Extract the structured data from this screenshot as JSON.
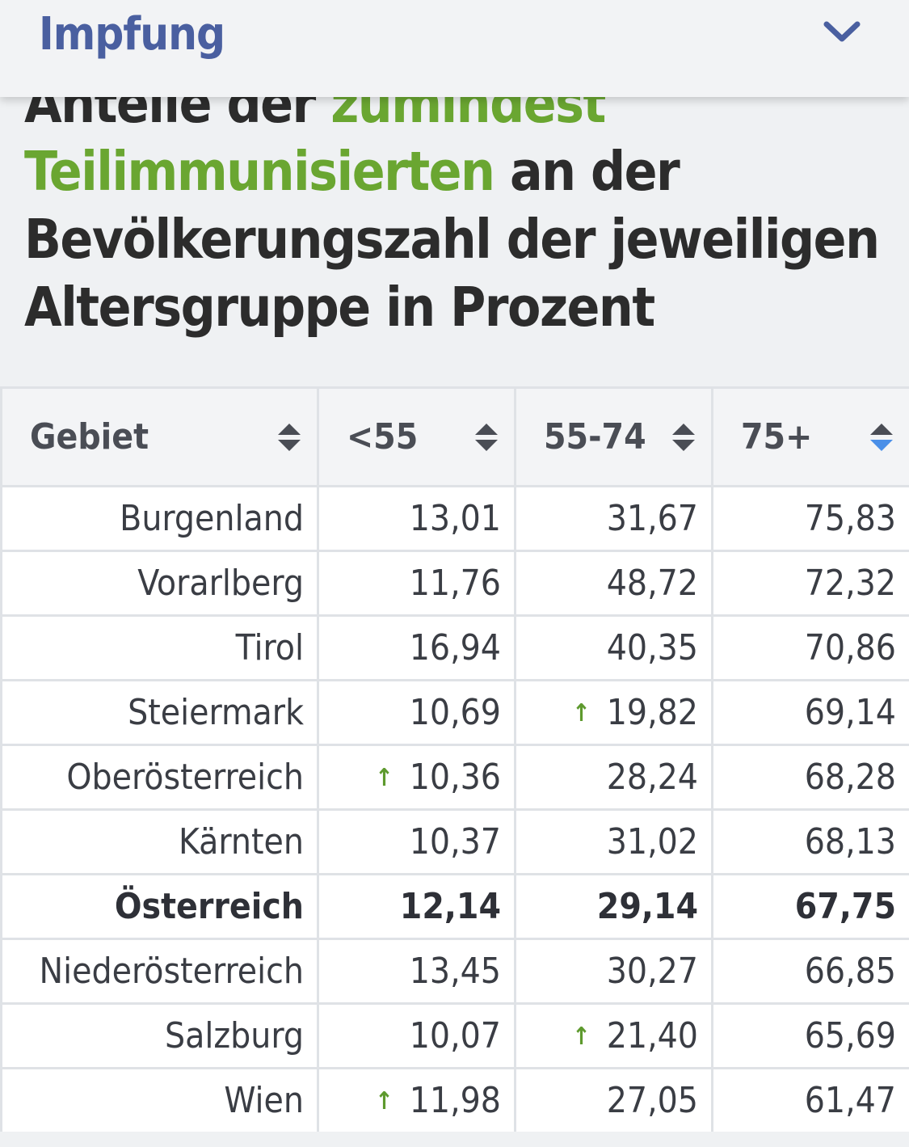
{
  "header": {
    "title": "Impfung",
    "chevron_icon": "chevron-down-icon"
  },
  "headline": {
    "line1_dark": "Anteile der",
    "line1_green": "zumindest",
    "line2_green": "Teilimmunisierten",
    "line2_dark": "an der",
    "line3": "Bevölkerungszahl der jeweiligen",
    "line4": "Altersgruppe in Prozent"
  },
  "colors": {
    "accent_green": "#6aa631",
    "title_blue": "#4a5fa0",
    "sort_active": "#4a8fe8"
  },
  "table": {
    "columns": [
      "Gebiet",
      "<55",
      "55-74",
      "75+"
    ],
    "active_sort_column": "75+",
    "rows": [
      {
        "gebiet": "Burgenland",
        "u55": "13,01",
        "u55_up": false,
        "m5574": "31,67",
        "m5574_up": false,
        "o75": "75,83",
        "bold": false
      },
      {
        "gebiet": "Vorarlberg",
        "u55": "11,76",
        "u55_up": false,
        "m5574": "48,72",
        "m5574_up": false,
        "o75": "72,32",
        "bold": false
      },
      {
        "gebiet": "Tirol",
        "u55": "16,94",
        "u55_up": false,
        "m5574": "40,35",
        "m5574_up": false,
        "o75": "70,86",
        "bold": false
      },
      {
        "gebiet": "Steiermark",
        "u55": "10,69",
        "u55_up": false,
        "m5574": "19,82",
        "m5574_up": true,
        "o75": "69,14",
        "bold": false
      },
      {
        "gebiet": "Oberösterreich",
        "u55": "10,36",
        "u55_up": true,
        "m5574": "28,24",
        "m5574_up": false,
        "o75": "68,28",
        "bold": false
      },
      {
        "gebiet": "Kärnten",
        "u55": "10,37",
        "u55_up": false,
        "m5574": "31,02",
        "m5574_up": false,
        "o75": "68,13",
        "bold": false
      },
      {
        "gebiet": "Österreich",
        "u55": "12,14",
        "u55_up": false,
        "m5574": "29,14",
        "m5574_up": false,
        "o75": "67,75",
        "bold": true
      },
      {
        "gebiet": "Niederösterreich",
        "u55": "13,45",
        "u55_up": false,
        "m5574": "30,27",
        "m5574_up": false,
        "o75": "66,85",
        "bold": false
      },
      {
        "gebiet": "Salzburg",
        "u55": "10,07",
        "u55_up": false,
        "m5574": "21,40",
        "m5574_up": true,
        "o75": "65,69",
        "bold": false
      },
      {
        "gebiet": "Wien",
        "u55": "11,98",
        "u55_up": true,
        "m5574": "27,05",
        "m5574_up": false,
        "o75": "61,47",
        "bold": false
      }
    ],
    "arrow_icon": "up-arrow-icon",
    "sort_icon": "sort-icon"
  }
}
